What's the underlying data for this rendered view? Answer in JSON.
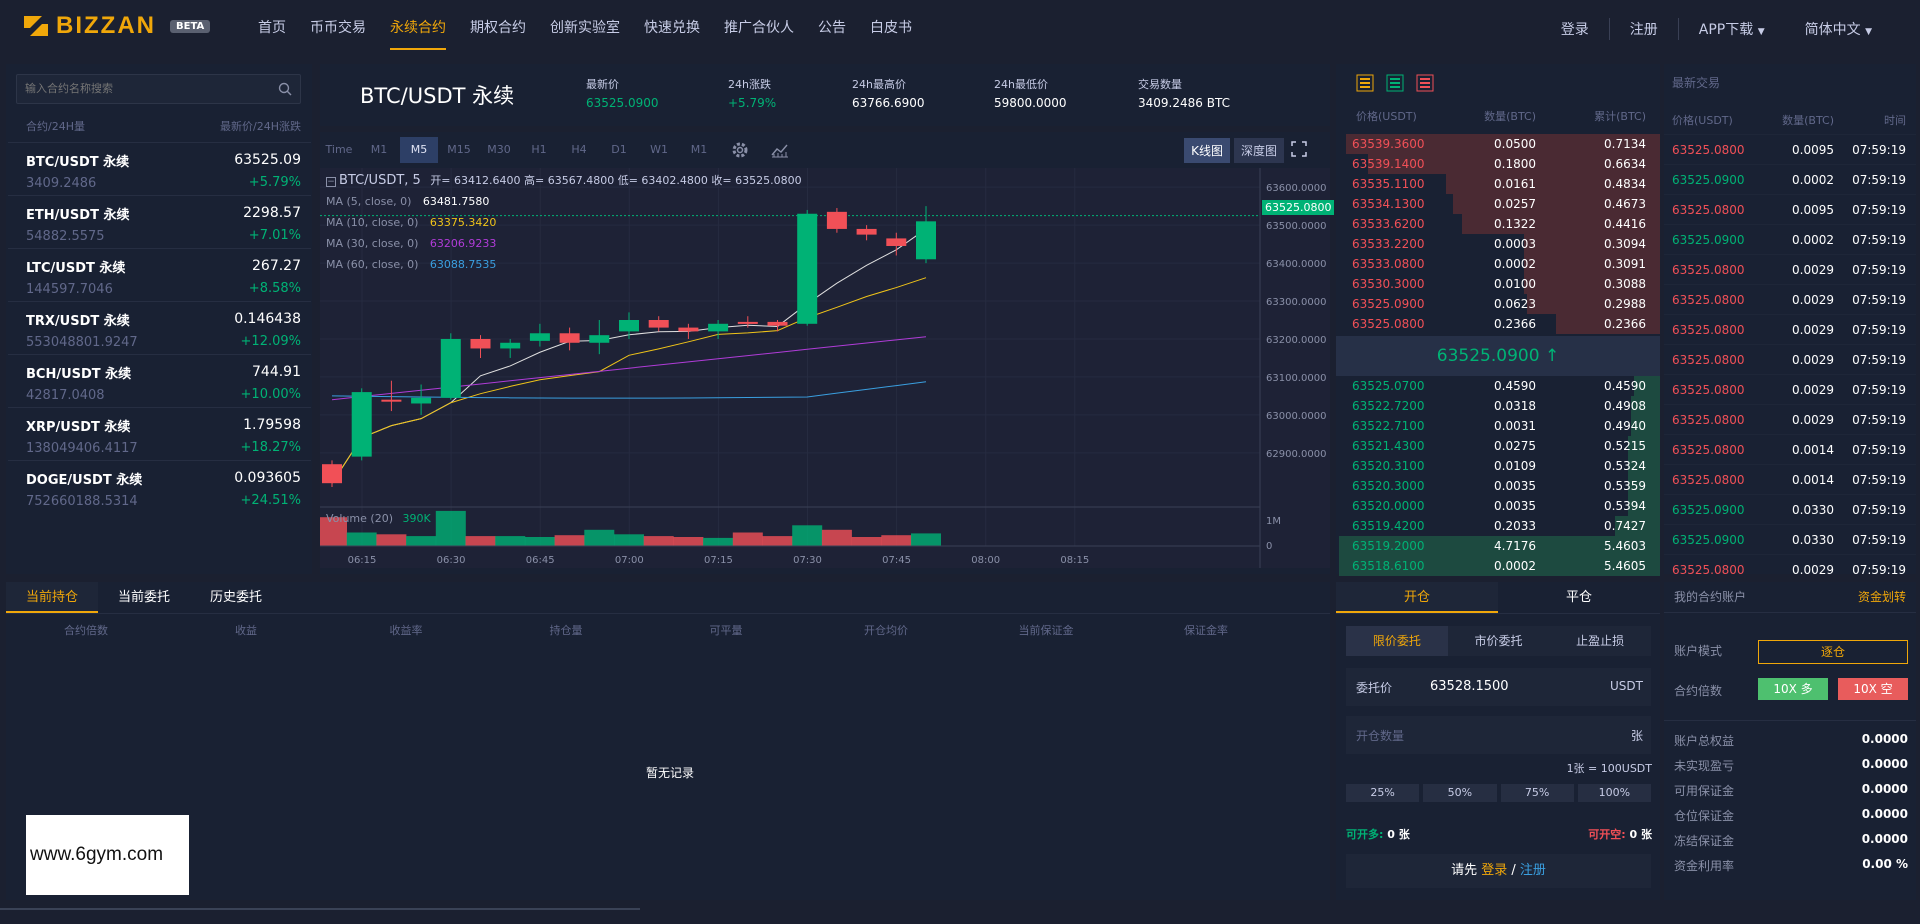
{
  "brand": {
    "name": "BIZZAN",
    "badge": "BETA",
    "accent": "#f0a70a"
  },
  "nav": [
    {
      "label": "首页",
      "active": false
    },
    {
      "label": "币币交易",
      "active": false
    },
    {
      "label": "永续合约",
      "active": true
    },
    {
      "label": "期权合约",
      "active": false
    },
    {
      "label": "创新实验室",
      "active": false
    },
    {
      "label": "快速兑换",
      "active": false
    },
    {
      "label": "推广合伙人",
      "active": false
    },
    {
      "label": "公告",
      "active": false
    },
    {
      "label": "白皮书",
      "active": false
    }
  ],
  "topright": {
    "login": "登录",
    "register": "注册",
    "app": "APP下载",
    "lang": "简体中文"
  },
  "markets": {
    "search_placeholder": "输入合约名称搜索",
    "col_left": "合约/24H量",
    "col_right": "最新价/24H涨跌",
    "rows": [
      {
        "name": "BTC/USDT 永续",
        "price": "63525.09",
        "vol": "3409.2486",
        "chg": "+5.79%"
      },
      {
        "name": "ETH/USDT 永续",
        "price": "2298.57",
        "vol": "54882.5575",
        "chg": "+7.01%"
      },
      {
        "name": "LTC/USDT 永续",
        "price": "267.27",
        "vol": "144597.7046",
        "chg": "+8.58%"
      },
      {
        "name": "TRX/USDT 永续",
        "price": "0.146438",
        "vol": "553048801.9247",
        "chg": "+12.09%"
      },
      {
        "name": "BCH/USDT 永续",
        "price": "744.91",
        "vol": "42817.0408",
        "chg": "+10.00%"
      },
      {
        "name": "XRP/USDT 永续",
        "price": "1.79598",
        "vol": "138049406.4117",
        "chg": "+18.27%"
      },
      {
        "name": "DOGE/USDT 永续",
        "price": "0.093605",
        "vol": "752660188.5314",
        "chg": "+24.51%"
      }
    ]
  },
  "ticker": {
    "symbol": "BTC/USDT 永续",
    "last_label": "最新价",
    "last": "63525.0900",
    "chg_label": "24h涨跌",
    "chg": "+5.79%",
    "high_label": "24h最高价",
    "high": "63766.6900",
    "low_label": "24h最低价",
    "low": "59800.0000",
    "vol_label": "交易数量",
    "vol": "3409.2486 BTC"
  },
  "chart": {
    "intervals": [
      "Time",
      "M1",
      "M5",
      "M15",
      "M30",
      "H1",
      "H4",
      "D1",
      "W1",
      "M1"
    ],
    "active_interval": "M5",
    "view_kline": "K线图",
    "view_depth": "深度图",
    "legend_title": "BTC/USDT, 5",
    "ohlc": "开= 63412.6400 高= 63567.4800 低= 63402.4800 收= 63525.0800",
    "ma": [
      {
        "label": "MA (5, close, 0)",
        "value": "63481.7580",
        "color": "#e0e0e0"
      },
      {
        "label": "MA (10, close, 0)",
        "value": "63375.3420",
        "color": "#f0c419"
      },
      {
        "label": "MA (30, close, 0)",
        "value": "63206.9233",
        "color": "#b03cd8"
      },
      {
        "label": "MA (60, close, 0)",
        "value": "63088.7535",
        "color": "#3a9fe0"
      }
    ],
    "volume_label": "Volume (20)",
    "volume_value": "390K",
    "price_tag": "63525.0800",
    "yticks": [
      "63600.0000",
      "63500.0000",
      "63400.0000",
      "63300.0000",
      "63200.0000",
      "63100.0000",
      "63000.0000",
      "62900.0000"
    ],
    "vticks": [
      "1M",
      "0"
    ],
    "xticks": [
      "06:15",
      "06:30",
      "06:45",
      "07:00",
      "07:15",
      "07:30",
      "07:45",
      "08:00",
      "08:15"
    ]
  },
  "chart_data": {
    "type": "candlestick",
    "ylim": [
      62860,
      63640
    ],
    "candles": [
      {
        "o": 62870,
        "c": 62820,
        "h": 62880,
        "l": 62810,
        "v": 320
      },
      {
        "o": 62890,
        "c": 63060,
        "h": 63070,
        "l": 62880,
        "v": 150
      },
      {
        "o": 63040,
        "c": 63035,
        "h": 63090,
        "l": 63010,
        "v": 130
      },
      {
        "o": 63030,
        "c": 63045,
        "h": 63080,
        "l": 63000,
        "v": 110
      },
      {
        "o": 63045,
        "c": 63200,
        "h": 63215,
        "l": 63040,
        "v": 390
      },
      {
        "o": 63200,
        "c": 63175,
        "h": 63210,
        "l": 63150,
        "v": 110
      },
      {
        "o": 63175,
        "c": 63190,
        "h": 63200,
        "l": 63150,
        "v": 110
      },
      {
        "o": 63195,
        "c": 63215,
        "h": 63240,
        "l": 63180,
        "v": 100
      },
      {
        "o": 63215,
        "c": 63190,
        "h": 63230,
        "l": 63170,
        "v": 120
      },
      {
        "o": 63190,
        "c": 63210,
        "h": 63250,
        "l": 63160,
        "v": 180
      },
      {
        "o": 63220,
        "c": 63250,
        "h": 63270,
        "l": 63200,
        "v": 130
      },
      {
        "o": 63250,
        "c": 63230,
        "h": 63260,
        "l": 63220,
        "v": 110
      },
      {
        "o": 63230,
        "c": 63220,
        "h": 63240,
        "l": 63200,
        "v": 100
      },
      {
        "o": 63220,
        "c": 63240,
        "h": 63250,
        "l": 63200,
        "v": 90
      },
      {
        "o": 63245,
        "c": 63240,
        "h": 63260,
        "l": 63230,
        "v": 150
      },
      {
        "o": 63245,
        "c": 63235,
        "h": 63250,
        "l": 63220,
        "v": 110
      },
      {
        "o": 63240,
        "c": 63530,
        "h": 63540,
        "l": 63235,
        "v": 230
      },
      {
        "o": 63535,
        "c": 63490,
        "h": 63545,
        "l": 63480,
        "v": 180
      },
      {
        "o": 63490,
        "c": 63475,
        "h": 63500,
        "l": 63460,
        "v": 100
      },
      {
        "o": 63465,
        "c": 63445,
        "h": 63480,
        "l": 63420,
        "v": 120
      },
      {
        "o": 63410,
        "c": 63510,
        "h": 63550,
        "l": 63400,
        "v": 140
      }
    ]
  },
  "orderbook": {
    "head": [
      "价格(USDT)",
      "数量(BTC)",
      "累计(BTC)"
    ],
    "asks": [
      {
        "p": "63539.3600",
        "a": "0.0500",
        "t": "0.7134",
        "w": 0.97
      },
      {
        "p": "63539.1400",
        "a": "0.1800",
        "t": "0.6634",
        "w": 0.9
      },
      {
        "p": "63535.1100",
        "a": "0.0161",
        "t": "0.4834",
        "w": 0.66
      },
      {
        "p": "63534.1300",
        "a": "0.0257",
        "t": "0.4673",
        "w": 0.64
      },
      {
        "p": "63533.6200",
        "a": "0.1322",
        "t": "0.4416",
        "w": 0.61
      },
      {
        "p": "63533.2200",
        "a": "0.0003",
        "t": "0.3094",
        "w": 0.42
      },
      {
        "p": "63533.0800",
        "a": "0.0002",
        "t": "0.3091",
        "w": 0.42
      },
      {
        "p": "63530.3000",
        "a": "0.0100",
        "t": "0.3088",
        "w": 0.42
      },
      {
        "p": "63525.0900",
        "a": "0.0623",
        "t": "0.2988",
        "w": 0.41
      },
      {
        "p": "63525.0800",
        "a": "0.2366",
        "t": "0.2366",
        "w": 0.32
      }
    ],
    "mid": "63525.0900 ↑",
    "bids": [
      {
        "p": "63525.0700",
        "a": "0.4590",
        "t": "0.4590",
        "w": 0.08
      },
      {
        "p": "63522.7200",
        "a": "0.0318",
        "t": "0.4908",
        "w": 0.09
      },
      {
        "p": "63522.7100",
        "a": "0.0031",
        "t": "0.4940",
        "w": 0.09
      },
      {
        "p": "63521.4300",
        "a": "0.0275",
        "t": "0.5215",
        "w": 0.1
      },
      {
        "p": "63520.3100",
        "a": "0.0109",
        "t": "0.5324",
        "w": 0.1
      },
      {
        "p": "63520.3000",
        "a": "0.0035",
        "t": "0.5359",
        "w": 0.1
      },
      {
        "p": "63520.0000",
        "a": "0.0035",
        "t": "0.5394",
        "w": 0.1
      },
      {
        "p": "63519.4200",
        "a": "0.2033",
        "t": "0.7427",
        "w": 0.14
      },
      {
        "p": "63519.2000",
        "a": "4.7176",
        "t": "5.4603",
        "w": 0.99
      },
      {
        "p": "63518.6100",
        "a": "0.0002",
        "t": "5.4605",
        "w": 0.99
      }
    ]
  },
  "trades": {
    "title": "最新交易",
    "head": [
      "价格(USDT)",
      "数量(BTC)",
      "时间"
    ],
    "rows": [
      {
        "p": "63525.0800",
        "a": "0.0095",
        "t": "07:59:19",
        "side": "sell"
      },
      {
        "p": "63525.0900",
        "a": "0.0002",
        "t": "07:59:19",
        "side": "buy"
      },
      {
        "p": "63525.0800",
        "a": "0.0095",
        "t": "07:59:19",
        "side": "sell"
      },
      {
        "p": "63525.0900",
        "a": "0.0002",
        "t": "07:59:19",
        "side": "buy"
      },
      {
        "p": "63525.0800",
        "a": "0.0029",
        "t": "07:59:19",
        "side": "sell"
      },
      {
        "p": "63525.0800",
        "a": "0.0029",
        "t": "07:59:19",
        "side": "sell"
      },
      {
        "p": "63525.0800",
        "a": "0.0029",
        "t": "07:59:19",
        "side": "sell"
      },
      {
        "p": "63525.0800",
        "a": "0.0029",
        "t": "07:59:19",
        "side": "sell"
      },
      {
        "p": "63525.0800",
        "a": "0.0029",
        "t": "07:59:19",
        "side": "sell"
      },
      {
        "p": "63525.0800",
        "a": "0.0029",
        "t": "07:59:19",
        "side": "sell"
      },
      {
        "p": "63525.0800",
        "a": "0.0014",
        "t": "07:59:19",
        "side": "sell"
      },
      {
        "p": "63525.0800",
        "a": "0.0014",
        "t": "07:59:19",
        "side": "sell"
      },
      {
        "p": "63525.0900",
        "a": "0.0330",
        "t": "07:59:19",
        "side": "buy"
      },
      {
        "p": "63525.0900",
        "a": "0.0330",
        "t": "07:59:19",
        "side": "buy"
      },
      {
        "p": "63525.0800",
        "a": "0.0029",
        "t": "07:59:19",
        "side": "sell"
      }
    ]
  },
  "positions": {
    "tabs": [
      "当前持仓",
      "当前委托",
      "历史委托"
    ],
    "cols": [
      "合约倍数",
      "收益",
      "收益率",
      "持仓量",
      "可平量",
      "开仓均价",
      "当前保证金",
      "保证金率"
    ],
    "empty": "暂无记录"
  },
  "watermark": "www.6gym.com",
  "order": {
    "tabs": [
      "开仓",
      "平仓"
    ],
    "types": [
      "限价委托",
      "市价委托",
      "止盈止损"
    ],
    "price_label": "委托价",
    "price_value": "63528.1500",
    "price_unit": "USDT",
    "qty_placeholder": "开仓数量",
    "qty_unit": "张",
    "lot_hint": "1张 = 100USDT",
    "pcts": [
      "25%",
      "50%",
      "75%",
      "100%"
    ],
    "can_long_label": "可开多:",
    "can_long": "0 张",
    "can_short_label": "可开空:",
    "can_short": "0 张",
    "login_prefix": "请先",
    "login": "登录",
    "slash": "/",
    "register": "注册"
  },
  "account": {
    "title": "我的合约账户",
    "transfer": "资金划转",
    "mode_label": "账户模式",
    "mode": "逐仓",
    "lev_label": "合约倍数",
    "lev_long": "10X 多",
    "lev_short": "10X 空",
    "rows": [
      {
        "label": "账户总权益",
        "value": "0.0000"
      },
      {
        "label": "未实现盈亏",
        "value": "0.0000"
      },
      {
        "label": "可用保证金",
        "value": "0.0000"
      },
      {
        "label": "仓位保证金",
        "value": "0.0000"
      },
      {
        "label": "冻结保证金",
        "value": "0.0000"
      },
      {
        "label": "资金利用率",
        "value": "0.00 %"
      }
    ]
  },
  "colors": {
    "up": "#00b275",
    "down": "#f15057",
    "accent": "#f0a70a"
  }
}
